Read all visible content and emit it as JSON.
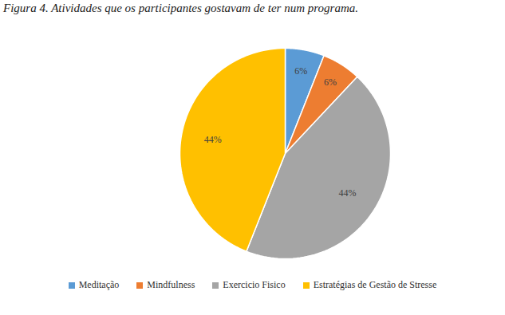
{
  "chart_data": {
    "type": "pie",
    "title": "Figura 4. Atividades que os participantes gostavam de ter num programa.",
    "categories": [
      "Meditação",
      "Mindfulness",
      "Exercicio Fisico",
      "Estratégias de Gestão de Stresse"
    ],
    "values": [
      6,
      6,
      44,
      44
    ],
    "value_labels": [
      "6%",
      "6%",
      "44%",
      "44%"
    ],
    "colors": [
      "#5b9bd5",
      "#ed7d31",
      "#a5a5a5",
      "#ffc000"
    ],
    "data_labels": true,
    "legend": "bottom"
  }
}
